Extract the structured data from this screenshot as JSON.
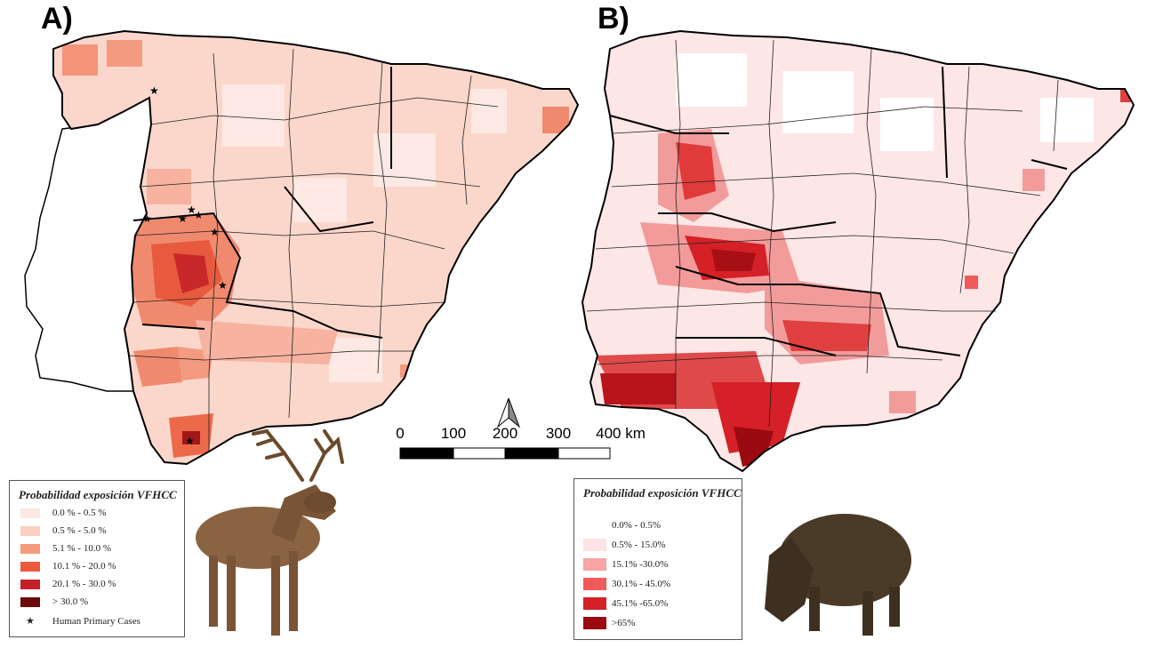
{
  "panels": {
    "a": {
      "label": "A)",
      "legend": {
        "title": "Probabilidad exposición VFHCC",
        "entries": [
          {
            "label": "0.0 % - 0.5 %",
            "color": "#fde8e3"
          },
          {
            "label": "0.5 % - 5.0 %",
            "color": "#fbcfc1"
          },
          {
            "label": "5.1 % - 10.0 %",
            "color": "#f59a7c"
          },
          {
            "label": "10.1 % - 20.0 %",
            "color": "#ec5a3c"
          },
          {
            "label": "20.1 % - 30.0 %",
            "color": "#c5202a"
          },
          {
            "label": "> 30.0 %",
            "color": "#6b0a0a"
          }
        ],
        "cases_label": "Human Primary Cases",
        "cases_symbol": "★"
      },
      "animal_icon": "red-deer-photo"
    },
    "b": {
      "label": "B)",
      "legend": {
        "title": "Probabilidad exposición VFHCC",
        "entries": [
          {
            "label": "0.0% - 0.5%",
            "color": "#ffffff"
          },
          {
            "label": "0.5% - 15.0%",
            "color": "#fde3e3"
          },
          {
            "label": "15.1% -30.0%",
            "color": "#f7a5a5"
          },
          {
            "label": "30.1% - 45.0%",
            "color": "#f05a5a"
          },
          {
            "label": "45.1% -65.0%",
            "color": "#d42026"
          },
          {
            "label": ">65%",
            "color": "#9a0a10"
          }
        ]
      },
      "animal_icon": "wild-boar-photo"
    }
  },
  "scale_bar": {
    "ticks": [
      "0",
      "100",
      "200",
      "300",
      "400 km"
    ]
  },
  "north_arrow_icon": "north-arrow-icon"
}
